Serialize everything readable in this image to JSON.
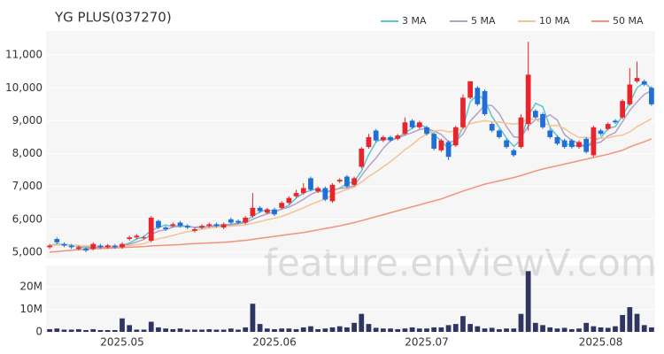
{
  "chart_data": [
    {
      "type": "candlestick",
      "title": "YG PLUS(037270)",
      "open": [
        5150,
        5400,
        5250,
        5200,
        5100,
        5100,
        5100,
        5200,
        5150,
        5200,
        5150,
        5400,
        5450,
        5450,
        5350,
        5950,
        5750,
        5800,
        5900,
        5800,
        5650,
        5750,
        5800,
        5850,
        5750,
        6000,
        5950,
        5900,
        6100,
        6350,
        6200,
        6300,
        6350,
        6500,
        6700,
        6800,
        7250,
        6850,
        6950,
        6550,
        7150,
        7300,
        7050,
        7600,
        8200,
        8700,
        8400,
        8500,
        8450,
        8600,
        9000,
        8800,
        8800,
        8600,
        8100,
        8350,
        8250,
        8800,
        9700,
        10000,
        9900,
        8900,
        8700,
        8400,
        8100,
        8200,
        8900,
        9300,
        9200,
        8700,
        8500,
        8400,
        8400,
        8200,
        8450,
        7950,
        8700,
        8750,
        9000,
        9100,
        9500,
        10200,
        10200,
        10000
      ],
      "high": [
        5250,
        5450,
        5300,
        5250,
        5200,
        5150,
        5300,
        5250,
        5250,
        5250,
        5300,
        5500,
        5550,
        5500,
        6100,
        6000,
        5800,
        5900,
        5950,
        5850,
        5750,
        5850,
        5900,
        5900,
        5900,
        6050,
        6000,
        6100,
        6800,
        6400,
        6350,
        6350,
        6550,
        6700,
        6900,
        7100,
        7300,
        7000,
        7000,
        7100,
        7250,
        7350,
        7300,
        8200,
        8600,
        8750,
        8550,
        8550,
        8600,
        9100,
        9050,
        9000,
        8850,
        8650,
        8450,
        8400,
        8850,
        9800,
        10200,
        10050,
        9950,
        8950,
        8750,
        8450,
        8150,
        9200,
        11400,
        9350,
        9250,
        8750,
        8550,
        8450,
        8450,
        8400,
        8500,
        8850,
        8750,
        8950,
        9050,
        9650,
        10600,
        10800,
        10250,
        10050
      ],
      "low": [
        5100,
        5250,
        5150,
        5100,
        5050,
        5000,
        5050,
        5100,
        5100,
        5100,
        5100,
        5350,
        5400,
        5400,
        5300,
        5700,
        5650,
        5750,
        5750,
        5700,
        5600,
        5700,
        5750,
        5750,
        5700,
        5850,
        5850,
        5850,
        6050,
        6200,
        6150,
        6100,
        6300,
        6450,
        6650,
        6750,
        6850,
        6800,
        6550,
        6500,
        7100,
        6950,
        7000,
        7550,
        8150,
        8350,
        8350,
        8350,
        8400,
        8550,
        8750,
        8750,
        8550,
        8100,
        8050,
        7800,
        8200,
        8750,
        9650,
        9450,
        9150,
        8650,
        8450,
        8150,
        7900,
        8150,
        8700,
        9050,
        8750,
        8450,
        8250,
        8150,
        8150,
        8150,
        8000,
        7900,
        8550,
        8700,
        8900,
        9050,
        9450,
        10150,
        10050,
        9450
      ],
      "close": [
        5200,
        5300,
        5200,
        5150,
        5150,
        5050,
        5250,
        5150,
        5200,
        5150,
        5250,
        5450,
        5500,
        5450,
        6050,
        5750,
        5700,
        5850,
        5800,
        5750,
        5700,
        5800,
        5850,
        5800,
        5850,
        5900,
        5900,
        6050,
        6350,
        6250,
        6300,
        6150,
        6500,
        6650,
        6800,
        6950,
        6900,
        6950,
        6600,
        7050,
        7200,
        7000,
        7250,
        8150,
        8500,
        8400,
        8500,
        8400,
        8550,
        8950,
        8800,
        8950,
        8600,
        8150,
        8400,
        7900,
        8800,
        9700,
        10200,
        9500,
        9200,
        8700,
        8500,
        8200,
        7950,
        9100,
        10400,
        9100,
        8800,
        8500,
        8300,
        8200,
        8200,
        8350,
        8050,
        8800,
        8600,
        8900,
        8950,
        9600,
        10100,
        10300,
        10100,
        9500
      ],
      "up_color": "#e8242c",
      "down_color": "#1f6fd6",
      "series": [
        {
          "name": "3 MA",
          "color": "#5cc6c9",
          "values": [
            5200,
            5250,
            5230,
            5220,
            5170,
            5120,
            5150,
            5150,
            5200,
            5170,
            5200,
            5280,
            5400,
            5470,
            5670,
            5750,
            5830,
            5770,
            5780,
            5800,
            5750,
            5750,
            5780,
            5820,
            5830,
            5850,
            5880,
            5950,
            6100,
            6220,
            6300,
            6230,
            6320,
            6430,
            6650,
            6800,
            6880,
            6930,
            6820,
            6870,
            6950,
            7080,
            7150,
            7470,
            7970,
            8350,
            8470,
            8430,
            8480,
            8630,
            8770,
            8900,
            8780,
            8570,
            8380,
            8150,
            8370,
            8800,
            9570,
            9800,
            9630,
            9130,
            8800,
            8470,
            8220,
            8420,
            9150,
            9530,
            9430,
            8800,
            8530,
            8330,
            8230,
            8250,
            8200,
            8400,
            8480,
            8770,
            8820,
            9150,
            9550,
            10000,
            10170,
            9970
          ]
        },
        {
          "name": "5 MA",
          "color": "#b3a0c9",
          "values": [
            5200,
            5230,
            5220,
            5210,
            5200,
            5170,
            5160,
            5150,
            5160,
            5160,
            5200,
            5240,
            5310,
            5390,
            5540,
            5640,
            5680,
            5760,
            5830,
            5770,
            5760,
            5780,
            5780,
            5790,
            5800,
            5830,
            5860,
            5900,
            6000,
            6090,
            6170,
            6220,
            6310,
            6370,
            6480,
            6610,
            6760,
            6850,
            6840,
            6890,
            6940,
            6960,
            7020,
            7330,
            7620,
            7860,
            8160,
            8390,
            8470,
            8560,
            8640,
            8730,
            8770,
            8690,
            8580,
            8360,
            8370,
            8600,
            8990,
            9220,
            9480,
            9460,
            9220,
            8820,
            8510,
            8490,
            8830,
            9030,
            9070,
            9180,
            9020,
            8580,
            8400,
            8310,
            8220,
            8300,
            8350,
            8540,
            8640,
            8970,
            9310,
            9570,
            9800,
            9920
          ]
        },
        {
          "name": "10 MA",
          "color": "#f0c590",
          "values": [
            5200,
            5220,
            5220,
            5210,
            5200,
            5190,
            5190,
            5180,
            5180,
            5180,
            5180,
            5200,
            5230,
            5260,
            5350,
            5410,
            5450,
            5510,
            5570,
            5620,
            5660,
            5700,
            5730,
            5760,
            5780,
            5790,
            5810,
            5830,
            5880,
            5930,
            5990,
            6030,
            6090,
            6170,
            6260,
            6350,
            6450,
            6540,
            6620,
            6740,
            6830,
            6910,
            6980,
            7130,
            7300,
            7440,
            7600,
            7750,
            7930,
            8120,
            8270,
            8460,
            8590,
            8690,
            8710,
            8660,
            8690,
            8750,
            8910,
            8960,
            9000,
            8970,
            8960,
            8920,
            8900,
            8930,
            9070,
            9030,
            8940,
            8850,
            8860,
            8760,
            8610,
            8490,
            8490,
            8460,
            8470,
            8480,
            8530,
            8560,
            8660,
            8820,
            8940,
            9060
          ]
        },
        {
          "name": "50 MA",
          "color": "#f2927c",
          "values": [
            5000,
            5020,
            5040,
            5060,
            5080,
            5090,
            5100,
            5110,
            5120,
            5130,
            5140,
            5150,
            5160,
            5170,
            5190,
            5200,
            5210,
            5220,
            5230,
            5250,
            5260,
            5270,
            5280,
            5290,
            5300,
            5320,
            5340,
            5360,
            5390,
            5420,
            5450,
            5480,
            5510,
            5540,
            5570,
            5600,
            5640,
            5680,
            5720,
            5760,
            5800,
            5850,
            5900,
            5960,
            6020,
            6080,
            6140,
            6200,
            6260,
            6320,
            6380,
            6440,
            6500,
            6560,
            6620,
            6700,
            6780,
            6860,
            6930,
            7000,
            7070,
            7120,
            7170,
            7220,
            7270,
            7330,
            7400,
            7470,
            7530,
            7580,
            7630,
            7680,
            7730,
            7780,
            7830,
            7880,
            7930,
            7980,
            8040,
            8100,
            8200,
            8280,
            8360,
            8450
          ]
        }
      ],
      "ylim": [
        4810,
        11730
      ],
      "yticks": [
        {
          "value": 5000,
          "label": "5,000"
        },
        {
          "value": 6000,
          "label": "6,000"
        },
        {
          "value": 7000,
          "label": "7,000"
        },
        {
          "value": 8000,
          "label": "8,000"
        },
        {
          "value": 9000,
          "label": "9,000"
        },
        {
          "value": 10000,
          "label": "10,000"
        },
        {
          "value": 11000,
          "label": "11,000"
        }
      ],
      "legend": "top-right",
      "grid": true
    },
    {
      "type": "bar",
      "categories": [
        null,
        null,
        null,
        null,
        null,
        null,
        null,
        null,
        null,
        null,
        "2025.05",
        null,
        null,
        null,
        null,
        null,
        null,
        null,
        null,
        null,
        null,
        null,
        null,
        null,
        null,
        null,
        null,
        null,
        null,
        null,
        null,
        "2025.06",
        null,
        null,
        null,
        null,
        null,
        null,
        null,
        null,
        null,
        null,
        null,
        null,
        null,
        null,
        null,
        null,
        null,
        null,
        null,
        null,
        "2025.07",
        null,
        null,
        null,
        null,
        null,
        null,
        null,
        null,
        null,
        null,
        null,
        null,
        null,
        null,
        null,
        null,
        null,
        null,
        null,
        null,
        null,
        null,
        null,
        "2025.08",
        null,
        null,
        null,
        null,
        null,
        null,
        null
      ],
      "values": [
        1200000,
        1500000,
        1000000,
        1000000,
        1200000,
        800000,
        1200000,
        800000,
        800000,
        800000,
        6000000,
        3000000,
        1000000,
        1000000,
        4500000,
        2000000,
        1500000,
        1200000,
        1500000,
        1000000,
        1000000,
        1000000,
        1200000,
        1000000,
        1000000,
        1500000,
        1000000,
        2000000,
        12500000,
        3500000,
        1500000,
        1200000,
        1500000,
        1500000,
        1200000,
        2000000,
        2500000,
        1200000,
        1500000,
        2000000,
        2500000,
        2000000,
        4000000,
        8000000,
        3500000,
        1800000,
        1500000,
        1500000,
        1200000,
        1500000,
        2000000,
        1500000,
        1500000,
        2000000,
        2000000,
        3000000,
        3500000,
        7000000,
        3500000,
        2500000,
        1500000,
        1800000,
        1200000,
        1500000,
        1500000,
        8000000,
        27000000,
        4000000,
        3000000,
        2000000,
        1500000,
        1800000,
        1200000,
        1500000,
        4000000,
        2500000,
        2000000,
        1800000,
        2500000,
        7500000,
        11000000,
        8000000,
        3000000,
        2000000
      ],
      "color": "#2e3563",
      "ylim": [
        0,
        29500000
      ],
      "yticks": [
        0,
        {
          "value": 10000000,
          "label": "10M"
        },
        {
          "value": 20000000,
          "label": "20M"
        }
      ]
    }
  ],
  "watermark": "feature.enViewV.com"
}
